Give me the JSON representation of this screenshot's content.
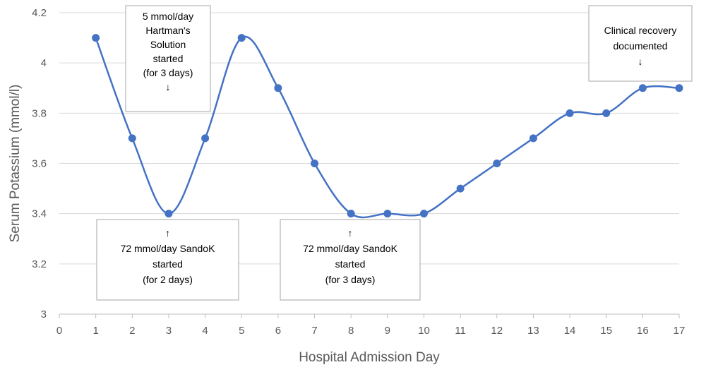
{
  "chart_data": {
    "type": "line",
    "title": "",
    "xlabel": "Hospital Admission Day",
    "ylabel": "Serum Potassium (mmol/l)",
    "xlim": [
      0,
      17
    ],
    "ylim": [
      3,
      4.2
    ],
    "x_ticks": [
      "0",
      "1",
      "2",
      "3",
      "4",
      "5",
      "6",
      "7",
      "8",
      "9",
      "10",
      "11",
      "12",
      "13",
      "14",
      "15",
      "16",
      "17"
    ],
    "y_ticks": [
      "3",
      "3.2",
      "3.4",
      "3.6",
      "3.8",
      "4",
      "4.2"
    ],
    "smoothed": true,
    "grid": true,
    "series_color": "#4472c4",
    "series": [
      {
        "x": [
          1,
          2,
          3,
          4,
          5,
          6,
          7,
          8,
          9,
          10,
          11,
          12,
          13,
          14,
          15,
          16,
          17
        ],
        "values": [
          4.1,
          3.7,
          3.4,
          3.7,
          4.1,
          3.9,
          3.6,
          3.4,
          3.4,
          3.4,
          3.5,
          3.6,
          3.7,
          3.8,
          3.8,
          3.9,
          3.9
        ]
      }
    ],
    "annotations": [
      {
        "lines": [
          "5 mmol/day",
          "Hartman's",
          "Solution",
          "started",
          "(for 3 days)",
          "↓"
        ]
      },
      {
        "lines": [
          "↑",
          "72 mmol/day SandoK",
          "started",
          "(for 2 days)"
        ]
      },
      {
        "lines": [
          "↑",
          "72 mmol/day SandoK",
          "started",
          "(for 3 days)"
        ]
      },
      {
        "lines": [
          "Clinical recovery",
          "documented",
          "↓"
        ]
      }
    ]
  }
}
